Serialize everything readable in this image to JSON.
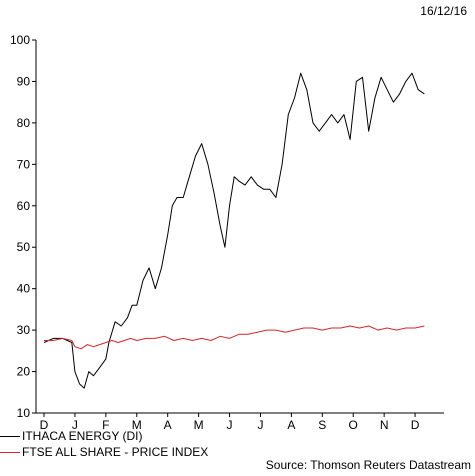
{
  "header": {
    "date": "16/12/16"
  },
  "legend": [
    {
      "label": "ITHACA ENERGY (DI)",
      "color": "#000000"
    },
    {
      "label": "FTSE ALL SHARE - PRICE INDEX",
      "color": "#d62728"
    }
  ],
  "source": "Source: Thomson Reuters Datastream",
  "chart_data": {
    "type": "line",
    "ylim": [
      10,
      100
    ],
    "yticks": [
      10,
      20,
      30,
      40,
      50,
      60,
      70,
      80,
      90,
      100
    ],
    "xticks": [
      "D",
      "J",
      "F",
      "M",
      "A",
      "M",
      "J",
      "J",
      "A",
      "S",
      "O",
      "N",
      "D"
    ],
    "series": [
      {
        "name": "ITHACA ENERGY (DI)",
        "color": "#000000",
        "x": [
          0,
          0.3,
          0.6,
          0.9,
          1.0,
          1.15,
          1.3,
          1.45,
          1.6,
          1.8,
          2.0,
          2.1,
          2.3,
          2.5,
          2.7,
          2.85,
          3.0,
          3.2,
          3.4,
          3.6,
          3.8,
          4.0,
          4.15,
          4.3,
          4.5,
          4.7,
          4.9,
          5.1,
          5.3,
          5.5,
          5.7,
          5.85,
          6.0,
          6.15,
          6.3,
          6.5,
          6.7,
          6.9,
          7.1,
          7.3,
          7.5,
          7.7,
          7.9,
          8.1,
          8.3,
          8.5,
          8.7,
          8.9,
          9.1,
          9.3,
          9.5,
          9.7,
          9.9,
          10.1,
          10.3,
          10.5,
          10.7,
          10.9,
          11.1,
          11.3,
          11.5,
          11.7,
          11.9,
          12.1,
          12.3
        ],
        "values": [
          27,
          28,
          28,
          27,
          20,
          17,
          16,
          20,
          19,
          21,
          23,
          27,
          32,
          31,
          33,
          36,
          36,
          42,
          45,
          40,
          45,
          53,
          60,
          62,
          62,
          67,
          72,
          75,
          70,
          63,
          55,
          50,
          60,
          67,
          66,
          65,
          67,
          65,
          64,
          64,
          62,
          70,
          82,
          86,
          92,
          88,
          80,
          78,
          80,
          82,
          80,
          82,
          76,
          90,
          91,
          78,
          86,
          91,
          88,
          85,
          87,
          90,
          92,
          88,
          87
        ]
      },
      {
        "name": "FTSE ALL SHARE - PRICE INDEX",
        "color": "#d62728",
        "x": [
          0,
          0.3,
          0.6,
          0.9,
          1.0,
          1.2,
          1.4,
          1.6,
          1.8,
          2.0,
          2.2,
          2.4,
          2.6,
          2.8,
          3.0,
          3.3,
          3.6,
          3.9,
          4.2,
          4.5,
          4.8,
          5.1,
          5.4,
          5.7,
          6.0,
          6.3,
          6.6,
          6.9,
          7.2,
          7.5,
          7.8,
          8.1,
          8.4,
          8.7,
          9.0,
          9.3,
          9.6,
          9.9,
          10.2,
          10.5,
          10.8,
          11.1,
          11.4,
          11.7,
          12.0,
          12.3
        ],
        "values": [
          27.5,
          27.5,
          28,
          27.5,
          26,
          25.5,
          26.5,
          26,
          26.5,
          27,
          27.5,
          27,
          27.5,
          28,
          27.5,
          28,
          28,
          28.5,
          27.5,
          28,
          27.5,
          28,
          27.5,
          28.5,
          28,
          29,
          29,
          29.5,
          30,
          30,
          29.5,
          30,
          30.5,
          30.5,
          30,
          30.5,
          30.5,
          31,
          30.5,
          31,
          30,
          30.5,
          30,
          30.5,
          30.5,
          31
        ]
      }
    ]
  }
}
